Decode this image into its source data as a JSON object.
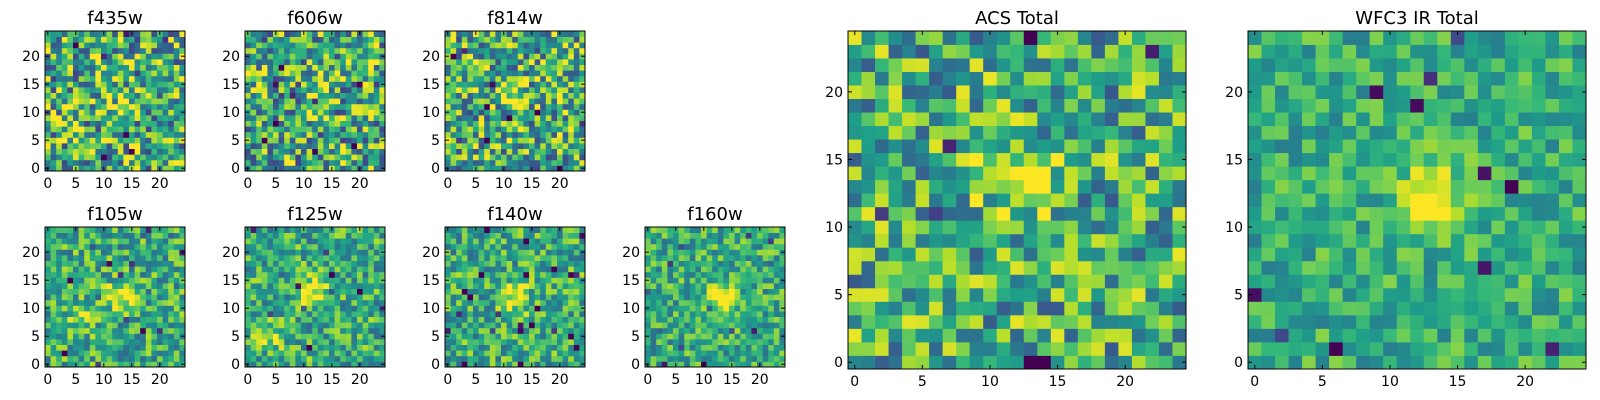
{
  "chart_data": {
    "type": "heatmap",
    "figure_description_colormap": "viridis",
    "panels": [
      {
        "id": "f435w",
        "title": "f435w",
        "grid": 25,
        "xlim": [
          0,
          24
        ],
        "ylim": [
          0,
          24
        ],
        "xticks": [
          0,
          5,
          10,
          15,
          20
        ],
        "yticks": [
          0,
          5,
          10,
          15,
          20
        ],
        "xtick_labels": [
          "0",
          "5",
          "10",
          "15",
          "20"
        ],
        "ytick_labels": [
          "0",
          "5",
          "10",
          "15",
          "20"
        ],
        "noise": 0.85,
        "seed": 11,
        "bright_spots": [
          [
            13,
            12,
            0.15
          ]
        ]
      },
      {
        "id": "f606w",
        "title": "f606w",
        "grid": 25,
        "xlim": [
          0,
          24
        ],
        "ylim": [
          0,
          24
        ],
        "xticks": [
          0,
          5,
          10,
          15,
          20
        ],
        "yticks": [
          0,
          5,
          10,
          15,
          20
        ],
        "xtick_labels": [
          "0",
          "5",
          "10",
          "15",
          "20"
        ],
        "ytick_labels": [
          "0",
          "5",
          "10",
          "15",
          "20"
        ],
        "noise": 0.85,
        "seed": 23,
        "bright_spots": [
          [
            12,
            12,
            0.1
          ]
        ]
      },
      {
        "id": "f814w",
        "title": "f814w",
        "grid": 25,
        "xlim": [
          0,
          24
        ],
        "ylim": [
          0,
          24
        ],
        "xticks": [
          0,
          5,
          10,
          15,
          20
        ],
        "yticks": [
          0,
          5,
          10,
          15,
          20
        ],
        "xtick_labels": [
          "0",
          "5",
          "10",
          "15",
          "20"
        ],
        "ytick_labels": [
          "0",
          "5",
          "10",
          "15",
          "20"
        ],
        "noise": 0.8,
        "seed": 37,
        "bright_spots": [
          [
            12,
            13,
            0.35
          ]
        ]
      },
      {
        "id": "f105w",
        "title": "f105w",
        "grid": 25,
        "xlim": [
          0,
          24
        ],
        "ylim": [
          0,
          24
        ],
        "xticks": [
          0,
          5,
          10,
          15,
          20
        ],
        "yticks": [
          0,
          5,
          10,
          15,
          20
        ],
        "xtick_labels": [
          "0",
          "5",
          "10",
          "15",
          "20"
        ],
        "ytick_labels": [
          "0",
          "5",
          "10",
          "15",
          "20"
        ],
        "noise": 0.55,
        "seed": 41,
        "bright_spots": [
          [
            13,
            12,
            0.4
          ],
          [
            6,
            8,
            0.2
          ]
        ]
      },
      {
        "id": "f125w",
        "title": "f125w",
        "grid": 25,
        "xlim": [
          0,
          24
        ],
        "ylim": [
          0,
          24
        ],
        "xticks": [
          0,
          5,
          10,
          15,
          20
        ],
        "yticks": [
          0,
          5,
          10,
          15,
          20
        ],
        "xtick_labels": [
          "0",
          "5",
          "10",
          "15",
          "20"
        ],
        "ytick_labels": [
          "0",
          "5",
          "10",
          "15",
          "20"
        ],
        "noise": 0.55,
        "seed": 53,
        "bright_spots": [
          [
            12,
            13,
            0.4
          ],
          [
            4,
            5,
            0.25
          ]
        ]
      },
      {
        "id": "f140w",
        "title": "f140w",
        "grid": 25,
        "xlim": [
          0,
          24
        ],
        "ylim": [
          0,
          24
        ],
        "xticks": [
          0,
          5,
          10,
          15,
          20
        ],
        "yticks": [
          0,
          5,
          10,
          15,
          20
        ],
        "xtick_labels": [
          "0",
          "5",
          "10",
          "15",
          "20"
        ],
        "ytick_labels": [
          "0",
          "5",
          "10",
          "15",
          "20"
        ],
        "noise": 0.55,
        "seed": 67,
        "bright_spots": [
          [
            12,
            12,
            0.45
          ]
        ]
      },
      {
        "id": "f160w",
        "title": "f160w",
        "grid": 25,
        "xlim": [
          0,
          24
        ],
        "ylim": [
          0,
          24
        ],
        "xticks": [
          0,
          5,
          10,
          15,
          20
        ],
        "yticks": [
          0,
          5,
          10,
          15,
          20
        ],
        "xtick_labels": [
          "0",
          "5",
          "10",
          "15",
          "20"
        ],
        "ytick_labels": [
          "0",
          "5",
          "10",
          "15",
          "20"
        ],
        "noise": 0.5,
        "seed": 79,
        "bright_spots": [
          [
            13,
            12,
            0.5
          ]
        ]
      },
      {
        "id": "acs-total",
        "title": "ACS Total",
        "grid": 25,
        "xlim": [
          0,
          24
        ],
        "ylim": [
          0,
          24
        ],
        "xticks": [
          0,
          5,
          10,
          15,
          20
        ],
        "yticks": [
          0,
          5,
          10,
          15,
          20
        ],
        "xtick_labels": [
          "0",
          "5",
          "10",
          "15",
          "20"
        ],
        "ytick_labels": [
          "0",
          "5",
          "10",
          "15",
          "20"
        ],
        "noise": 0.7,
        "seed": 97,
        "bright_spots": [
          [
            12,
            13,
            0.35
          ]
        ]
      },
      {
        "id": "wfc3-ir-total",
        "title": "WFC3 IR Total",
        "grid": 25,
        "xlim": [
          0,
          24
        ],
        "ylim": [
          0,
          24
        ],
        "xticks": [
          0,
          5,
          10,
          15,
          20
        ],
        "yticks": [
          0,
          5,
          10,
          15,
          20
        ],
        "xtick_labels": [
          "0",
          "5",
          "10",
          "15",
          "20"
        ],
        "ytick_labels": [
          "0",
          "5",
          "10",
          "15",
          "20"
        ],
        "noise": 0.4,
        "seed": 113,
        "bright_spots": [
          [
            13,
            12,
            0.55
          ]
        ]
      }
    ]
  }
}
